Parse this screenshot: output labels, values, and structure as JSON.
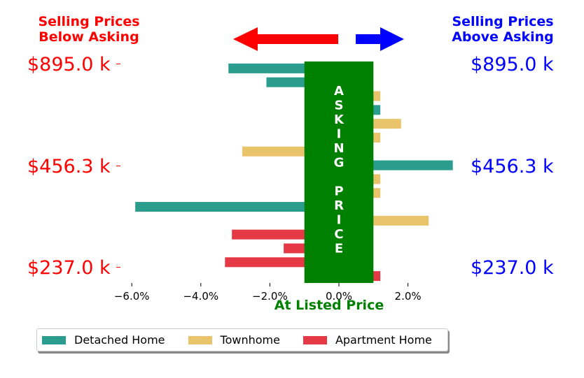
{
  "header": {
    "left_line1": "Selling Prices",
    "left_line2": "Below Asking",
    "right_line1": "Selling Prices",
    "right_line2": "Above Asking",
    "left_color": "#ff0000",
    "right_color": "#0000ff"
  },
  "price_labels": {
    "top": "$895.0 k",
    "middle": "$456.3 k",
    "bottom": "$237.0 k"
  },
  "asking_banner": {
    "letters": [
      "A",
      "S",
      "K",
      "I",
      "N",
      "G",
      "",
      "P",
      "R",
      "I",
      "C",
      "E"
    ],
    "color": "#008000"
  },
  "chart_data": {
    "type": "bar",
    "orientation": "horizontal",
    "xlabel": "At Listed Price",
    "xlim": [
      -0.066,
      0.033
    ],
    "xticks": [
      -0.06,
      -0.04,
      -0.02,
      0.0,
      0.02
    ],
    "xtick_labels": [
      "−6.0%",
      "−4.0%",
      "−2.0%",
      "0.0%",
      "2.0%"
    ],
    "series": [
      {
        "name": "Detached Home",
        "color": "#2a9d8f"
      },
      {
        "name": "Townhome",
        "color": "#e9c46a"
      },
      {
        "name": "Apartment Home",
        "color": "#e63946"
      }
    ],
    "bars": [
      {
        "series": 0,
        "value": -0.032
      },
      {
        "series": 0,
        "value": -0.021
      },
      {
        "series": 1,
        "value": 0.012
      },
      {
        "series": 0,
        "value": 0.012
      },
      {
        "series": 1,
        "value": 0.018
      },
      {
        "series": 1,
        "value": 0.012
      },
      {
        "series": 1,
        "value": -0.028
      },
      {
        "series": 0,
        "value": 0.033
      },
      {
        "series": 1,
        "value": 0.012
      },
      {
        "series": 1,
        "value": 0.012
      },
      {
        "series": 0,
        "value": -0.059
      },
      {
        "series": 1,
        "value": 0.026
      },
      {
        "series": 2,
        "value": -0.031
      },
      {
        "series": 2,
        "value": -0.016
      },
      {
        "series": 2,
        "value": -0.033
      },
      {
        "series": 2,
        "value": 0.012
      }
    ],
    "asking_band": [
      -0.01,
      0.01
    ],
    "grid": false,
    "legend_position": "bottom"
  }
}
